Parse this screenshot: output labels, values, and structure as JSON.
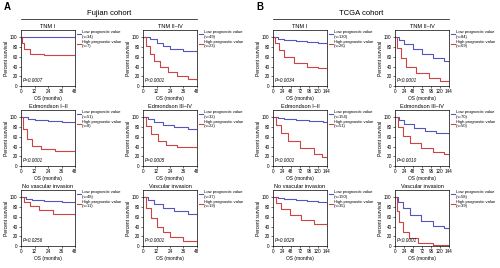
{
  "panels": [
    {
      "label": "A",
      "title": "Fujian cohort"
    },
    {
      "label": "B",
      "title": "TCGA cohort"
    }
  ],
  "chart_data": [
    {
      "type": "step",
      "panel": "A",
      "title": "TNM I",
      "x_label": "OS (months)",
      "y_label": "Percent survival",
      "xlim": [
        0,
        48
      ],
      "xticks": [
        0,
        12,
        24,
        36,
        48
      ],
      "ylim": [
        0,
        115
      ],
      "yticks": [
        0,
        20,
        40,
        60,
        80,
        100
      ],
      "annotations": [
        "P=0.0007"
      ],
      "legend": "right",
      "series": [
        {
          "name": "Low prognostic value\n(n=34)",
          "color": "#5555bb",
          "x": [
            0,
            48
          ],
          "values": [
            100,
            100
          ]
        },
        {
          "name": "High prognostic value\n(n=7)",
          "color": "#cc4444",
          "x": [
            0,
            1,
            3,
            8,
            13,
            20,
            48
          ],
          "values": [
            100,
            88,
            76,
            65,
            65,
            63,
            63
          ]
        }
      ]
    },
    {
      "type": "step",
      "panel": "A",
      "title": "TNM II–IV",
      "x_label": "OS (months)",
      "y_label": "Percent survival",
      "xlim": [
        0,
        48
      ],
      "xticks": [
        0,
        12,
        24,
        36,
        48
      ],
      "ylim": [
        0,
        115
      ],
      "yticks": [
        0,
        20,
        40,
        60,
        80,
        100
      ],
      "annotations": [
        "P<0.0001"
      ],
      "legend": "right",
      "series": [
        {
          "name": "Low prognostic value\n(n=49)",
          "color": "#5555bb",
          "x": [
            0,
            6,
            12,
            18,
            24,
            36,
            48
          ],
          "values": [
            100,
            96,
            88,
            82,
            76,
            72,
            70
          ]
        },
        {
          "name": "High prognostic value\n(n=23)",
          "color": "#cc4444",
          "x": [
            0,
            3,
            6,
            10,
            15,
            22,
            30,
            40,
            48
          ],
          "values": [
            100,
            82,
            66,
            52,
            38,
            28,
            20,
            15,
            12
          ]
        }
      ]
    },
    {
      "type": "step",
      "panel": "A",
      "title": "Edmondson I–II",
      "x_label": "OS (months)",
      "y_label": "Percent survival",
      "xlim": [
        0,
        48
      ],
      "xticks": [
        0,
        12,
        24,
        36,
        48
      ],
      "ylim": [
        0,
        115
      ],
      "yticks": [
        0,
        20,
        40,
        60,
        80,
        100
      ],
      "annotations": [
        "P<0.0001"
      ],
      "legend": "right",
      "series": [
        {
          "name": "Low prognostic value\n(n=51)",
          "color": "#5555bb",
          "x": [
            0,
            6,
            12,
            24,
            36,
            48
          ],
          "values": [
            100,
            97,
            95,
            93,
            91,
            90
          ]
        },
        {
          "name": "High prognostic value\n(n=8)",
          "color": "#cc4444",
          "x": [
            0,
            2,
            5,
            10,
            18,
            30,
            48
          ],
          "values": [
            100,
            75,
            55,
            42,
            34,
            30,
            30
          ]
        }
      ]
    },
    {
      "type": "step",
      "panel": "A",
      "title": "Edmondson III–IV",
      "x_label": "OS (months)",
      "y_label": "Percent survival",
      "xlim": [
        0,
        48
      ],
      "xticks": [
        0,
        12,
        24,
        36,
        48
      ],
      "ylim": [
        0,
        115
      ],
      "yticks": [
        0,
        20,
        40,
        60,
        80,
        100
      ],
      "annotations": [
        "P=0.0005"
      ],
      "legend": "right",
      "series": [
        {
          "name": "Low prognostic value\n(n=32)",
          "color": "#5555bb",
          "x": [
            0,
            4,
            10,
            18,
            28,
            40,
            48
          ],
          "values": [
            100,
            96,
            90,
            84,
            80,
            77,
            76
          ]
        },
        {
          "name": "High prognostic value\n(n=22)",
          "color": "#cc4444",
          "x": [
            0,
            3,
            7,
            13,
            20,
            30,
            40,
            48
          ],
          "values": [
            100,
            82,
            65,
            52,
            44,
            40,
            38,
            36
          ]
        }
      ]
    },
    {
      "type": "step",
      "panel": "A",
      "title": "No vascular invasion",
      "x_label": "OS (months)",
      "y_label": "Percent survival",
      "xlim": [
        0,
        48
      ],
      "xticks": [
        0,
        12,
        24,
        36,
        48
      ],
      "ylim": [
        0,
        115
      ],
      "yticks": [
        0,
        20,
        40,
        60,
        80,
        100
      ],
      "annotations": [
        "P=0.0256"
      ],
      "legend": "right",
      "series": [
        {
          "name": "Low prognostic value\n(n=48)",
          "color": "#5555bb",
          "x": [
            0,
            4,
            10,
            20,
            36,
            48
          ],
          "values": [
            100,
            97,
            95,
            93,
            91,
            90
          ]
        },
        {
          "name": "High prognostic value\n(n=11)",
          "color": "#cc4444",
          "x": [
            0,
            3,
            8,
            16,
            28,
            48
          ],
          "values": [
            100,
            90,
            82,
            74,
            66,
            64
          ]
        }
      ]
    },
    {
      "type": "step",
      "panel": "A",
      "title": "Vascular invasion",
      "x_label": "OS (months)",
      "y_label": "Percent survival",
      "xlim": [
        0,
        48
      ],
      "xticks": [
        0,
        12,
        24,
        36,
        48
      ],
      "ylim": [
        0,
        115
      ],
      "yticks": [
        0,
        20,
        40,
        60,
        80,
        100
      ],
      "annotations": [
        "P<0.0001"
      ],
      "legend": "right",
      "series": [
        {
          "name": "Low prognostic value\n(n=37)",
          "color": "#5555bb",
          "x": [
            0,
            4,
            10,
            18,
            28,
            40,
            48
          ],
          "values": [
            100,
            94,
            86,
            78,
            72,
            65,
            62
          ]
        },
        {
          "name": "High prognostic value\n(n=19)",
          "color": "#cc4444",
          "x": [
            0,
            3,
            7,
            12,
            18,
            24,
            36,
            48
          ],
          "values": [
            100,
            78,
            58,
            40,
            28,
            18,
            10,
            7
          ]
        }
      ]
    },
    {
      "type": "step",
      "panel": "B",
      "title": "TNM I",
      "x_label": "OS (months)",
      "y_label": "Percent survival",
      "xlim": [
        0,
        144
      ],
      "xticks": [
        0,
        24,
        48,
        72,
        96,
        120,
        144
      ],
      "ylim": [
        0,
        115
      ],
      "yticks": [
        0,
        20,
        40,
        60,
        80,
        100
      ],
      "annotations": [
        "P=0.0034"
      ],
      "legend": "right",
      "series": [
        {
          "name": "Low prognostic value\n(n=130)",
          "color": "#5555bb",
          "x": [
            0,
            12,
            30,
            60,
            90,
            120,
            144
          ],
          "values": [
            100,
            97,
            95,
            93,
            91,
            89,
            88
          ]
        },
        {
          "name": "High prognostic value\n(n=26)",
          "color": "#cc4444",
          "x": [
            0,
            6,
            15,
            30,
            55,
            90,
            120,
            144
          ],
          "values": [
            100,
            88,
            74,
            60,
            48,
            40,
            36,
            34
          ]
        }
      ]
    },
    {
      "type": "step",
      "panel": "B",
      "title": "TNM II–IV",
      "x_label": "OS (months)",
      "y_label": "Percent survival",
      "xlim": [
        0,
        144
      ],
      "xticks": [
        0,
        24,
        48,
        72,
        96,
        120,
        144
      ],
      "ylim": [
        0,
        115
      ],
      "yticks": [
        0,
        20,
        40,
        60,
        80,
        100
      ],
      "annotations": [
        "P<0.0001"
      ],
      "legend": "right",
      "series": [
        {
          "name": "Low prognostic value\n(n=84)",
          "color": "#5555bb",
          "x": [
            0,
            10,
            24,
            48,
            72,
            100,
            130,
            144
          ],
          "values": [
            100,
            94,
            86,
            76,
            66,
            58,
            52,
            50
          ]
        },
        {
          "name": "High prognostic value\n(n=69)",
          "color": "#cc4444",
          "x": [
            0,
            6,
            15,
            30,
            55,
            90,
            120,
            144
          ],
          "values": [
            100,
            78,
            58,
            40,
            26,
            16,
            10,
            8
          ]
        }
      ]
    },
    {
      "type": "step",
      "panel": "B",
      "title": "Edmondson I–II",
      "x_label": "OS (months)",
      "y_label": "Percent survival",
      "xlim": [
        0,
        144
      ],
      "xticks": [
        0,
        24,
        48,
        72,
        96,
        120,
        144
      ],
      "ylim": [
        0,
        115
      ],
      "yticks": [
        0,
        20,
        40,
        60,
        80,
        100
      ],
      "annotations": [
        "P<0.0001"
      ],
      "legend": "right",
      "series": [
        {
          "name": "Low prognostic value\n(n=154)",
          "color": "#5555bb",
          "x": [
            0,
            12,
            30,
            60,
            96,
            132,
            144
          ],
          "values": [
            100,
            98,
            96,
            94,
            92,
            90,
            90
          ]
        },
        {
          "name": "High prognostic value\n(n=51)",
          "color": "#cc4444",
          "x": [
            0,
            8,
            20,
            40,
            72,
            110,
            130,
            144
          ],
          "values": [
            100,
            84,
            68,
            52,
            36,
            24,
            18,
            15
          ]
        }
      ]
    },
    {
      "type": "step",
      "panel": "B",
      "title": "Edmondson III–IV",
      "x_label": "OS (months)",
      "y_label": "Percent survival",
      "xlim": [
        0,
        144
      ],
      "xticks": [
        0,
        24,
        48,
        72,
        96,
        120,
        144
      ],
      "ylim": [
        0,
        115
      ],
      "yticks": [
        0,
        20,
        40,
        60,
        80,
        100
      ],
      "annotations": [
        "P=0.0010"
      ],
      "legend": "right",
      "series": [
        {
          "name": "Low prognostic value\n(n=70)",
          "color": "#5555bb",
          "x": [
            0,
            10,
            25,
            50,
            80,
            110,
            144
          ],
          "values": [
            100,
            94,
            86,
            78,
            72,
            67,
            65
          ]
        },
        {
          "name": "High prognostic value\n(n=50)",
          "color": "#cc4444",
          "x": [
            0,
            8,
            20,
            40,
            70,
            100,
            130,
            144
          ],
          "values": [
            100,
            80,
            62,
            48,
            36,
            28,
            24,
            22
          ]
        }
      ]
    },
    {
      "type": "step",
      "panel": "B",
      "title": "No vascular invasion",
      "x_label": "OS (months)",
      "y_label": "Percent survival",
      "xlim": [
        0,
        144
      ],
      "xticks": [
        0,
        24,
        48,
        72,
        96,
        120,
        144
      ],
      "ylim": [
        0,
        115
      ],
      "yticks": [
        0,
        20,
        40,
        60,
        80,
        100
      ],
      "annotations": [
        "P=0.0029"
      ],
      "legend": "right",
      "series": [
        {
          "name": "Low prognostic value\n(n=150)",
          "color": "#5555bb",
          "x": [
            0,
            12,
            30,
            60,
            90,
            120,
            144
          ],
          "values": [
            100,
            98,
            96,
            94,
            92,
            90,
            89
          ]
        },
        {
          "name": "High prognostic value\n(n=35)",
          "color": "#cc4444",
          "x": [
            0,
            8,
            20,
            45,
            75,
            110,
            144
          ],
          "values": [
            100,
            88,
            76,
            64,
            54,
            46,
            42
          ]
        }
      ]
    },
    {
      "type": "step",
      "panel": "B",
      "title": "Vascular invasion",
      "x_label": "OS (months)",
      "y_label": "Percent survival",
      "xlim": [
        0,
        144
      ],
      "xticks": [
        0,
        24,
        48,
        72,
        96,
        120,
        144
      ],
      "ylim": [
        0,
        115
      ],
      "yticks": [
        0,
        20,
        40,
        60,
        80,
        100
      ],
      "annotations": [
        "P<0.0001"
      ],
      "legend": "right",
      "series": [
        {
          "name": "Low prognostic value\n(n=58)",
          "color": "#5555bb",
          "x": [
            0,
            8,
            20,
            40,
            70,
            100,
            130,
            144
          ],
          "values": [
            100,
            90,
            78,
            64,
            52,
            42,
            36,
            34
          ]
        },
        {
          "name": "High prognostic value\n(n=39)",
          "color": "#cc4444",
          "x": [
            0,
            4,
            10,
            20,
            36,
            60,
            100,
            144
          ],
          "values": [
            100,
            72,
            50,
            28,
            16,
            6,
            2,
            0
          ]
        }
      ]
    }
  ]
}
